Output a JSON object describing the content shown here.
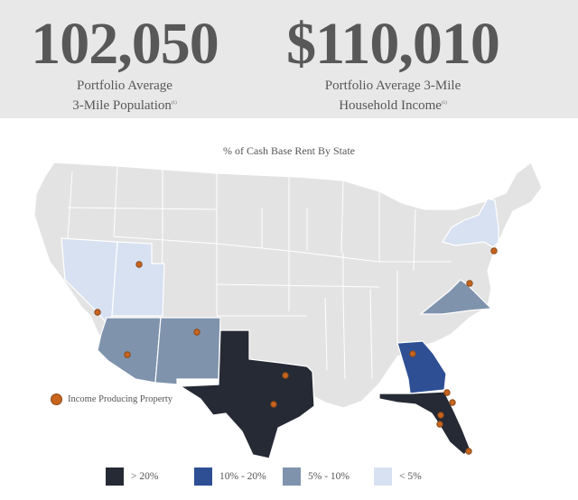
{
  "stats": [
    {
      "value": "102,050",
      "caption_line1": "Portfolio Average",
      "caption_line2": "3-Mile Population",
      "footnote": "(1)"
    },
    {
      "value": "$110,010",
      "caption_line1": "Portfolio Average 3-Mile",
      "caption_line2": "Household Income",
      "footnote": "(1)"
    }
  ],
  "map": {
    "title": "% of Cash Base Rent By State",
    "property_legend_label": "Income Producing Property",
    "legend": [
      {
        "label": "> 20%",
        "color": "#252a35"
      },
      {
        "label": "10% - 20%",
        "color": "#2e4f94"
      },
      {
        "label": "5% - 10%",
        "color": "#7f93ac"
      },
      {
        "label": "< 5%",
        "color": "#d8e1f1"
      }
    ],
    "states_highlighted": {
      "over_20": [
        "Texas",
        "Florida"
      ],
      "10_to_20": [
        "Georgia"
      ],
      "5_to_10": [
        "Arizona",
        "New Mexico",
        "Virginia"
      ],
      "under_5": [
        "Nevada",
        "Utah",
        "New York"
      ]
    }
  }
}
